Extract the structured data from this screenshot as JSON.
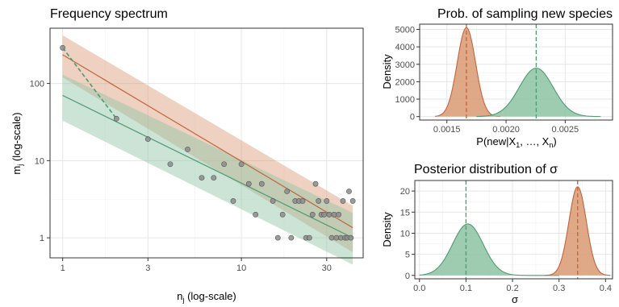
{
  "colors": {
    "orange": "#c0643c",
    "orange_fill": "#d99a73",
    "green": "#4f9a73",
    "green_fill": "#8cc3a3",
    "points": "#8c8c8c"
  },
  "chart_data": [
    {
      "type": "scatter",
      "title": "Frequency spectrum",
      "xlabel": "n",
      "xlabel_sub": "j",
      "xlabel_suffix": " (log-scale)",
      "ylabel": "m",
      "ylabel_sub": "j",
      "ylabel_suffix": " (log-scale)",
      "xscale": "log",
      "yscale": "log",
      "xlim": [
        0.85,
        48
      ],
      "ylim": [
        0.55,
        520
      ],
      "xticks": [
        1,
        3,
        10,
        30
      ],
      "xtick_labels": [
        "1",
        "3",
        "10",
        "30"
      ],
      "yticks": [
        1,
        10,
        100
      ],
      "ytick_labels": [
        "1",
        "10",
        "100"
      ],
      "grid": true,
      "points": [
        [
          1,
          290
        ],
        [
          2,
          35
        ],
        [
          3,
          19
        ],
        [
          4,
          9
        ],
        [
          5,
          14
        ],
        [
          6,
          6
        ],
        [
          7,
          6
        ],
        [
          8,
          9
        ],
        [
          9,
          3
        ],
        [
          10,
          9
        ],
        [
          11,
          5
        ],
        [
          12,
          2
        ],
        [
          13,
          5
        ],
        [
          15,
          3
        ],
        [
          16,
          1
        ],
        [
          17,
          2
        ],
        [
          18,
          4
        ],
        [
          19,
          1
        ],
        [
          20,
          3
        ],
        [
          21,
          3
        ],
        [
          22,
          3
        ],
        [
          23,
          1
        ],
        [
          24,
          1
        ],
        [
          25,
          2
        ],
        [
          26,
          5
        ],
        [
          27,
          3
        ],
        [
          28,
          2
        ],
        [
          29,
          2
        ],
        [
          30,
          3
        ],
        [
          31,
          2
        ],
        [
          32,
          1
        ],
        [
          33,
          2
        ],
        [
          34,
          1
        ],
        [
          35,
          2
        ],
        [
          36,
          1
        ],
        [
          37,
          3
        ],
        [
          38,
          1
        ],
        [
          39,
          1
        ],
        [
          40,
          4
        ],
        [
          41,
          1
        ],
        [
          42,
          3
        ]
      ],
      "series": [
        {
          "color": "orange",
          "x": [
            1,
            42
          ],
          "y": [
            235,
            1.35
          ],
          "lower": [
            120,
            0.65
          ],
          "upper": [
            420,
            2.6
          ]
        },
        {
          "color": "green",
          "x": [
            1,
            42
          ],
          "y": [
            70,
            1.0
          ],
          "lower": [
            33,
            0.45
          ],
          "upper": [
            130,
            2.1
          ]
        }
      ],
      "dashed_segment": {
        "color": "green",
        "x": [
          1,
          2
        ],
        "y": [
          290,
          35
        ]
      }
    },
    {
      "type": "area",
      "title": "Prob. of sampling new species",
      "xlabel": "P(new|X",
      "xlabel_sub": "1",
      "xlabel_mid": ", …, X",
      "xlabel_sub2": "n",
      "xlabel_end": ")",
      "ylabel": "Density",
      "xlim": [
        0.00127,
        0.0029
      ],
      "ylim": [
        -200,
        5300
      ],
      "xticks": [
        0.0015,
        0.002,
        0.0025
      ],
      "xtick_labels": [
        "0.0015",
        "0.0020",
        "0.0025"
      ],
      "yticks": [
        0,
        1000,
        2000,
        3000,
        4000,
        5000
      ],
      "ytick_labels": [
        "0",
        "1000",
        "2000",
        "3000",
        "4000",
        "5000"
      ],
      "grid": true,
      "densities": [
        {
          "color": "orange",
          "mean": 0.001665,
          "sd": 7.75e-05,
          "peak": 5100,
          "range": [
            0.0014,
            0.00195
          ]
        },
        {
          "color": "green",
          "mean": 0.002255,
          "sd": 0.000143,
          "peak": 2780,
          "range": [
            0.00175,
            0.0028
          ]
        }
      ],
      "vlines": [
        {
          "color": "orange",
          "x": 0.001665
        },
        {
          "color": "green",
          "x": 0.002255
        }
      ]
    },
    {
      "type": "area",
      "title": "Posterior distribution of σ",
      "xlabel": "σ",
      "ylabel": "Density",
      "xlim": [
        -0.01,
        0.415
      ],
      "ylim": [
        -0.8,
        22.5
      ],
      "xticks": [
        0.0,
        0.1,
        0.2,
        0.3,
        0.4
      ],
      "xtick_labels": [
        "0.0",
        "0.1",
        "0.2",
        "0.3",
        "0.4"
      ],
      "yticks": [
        0,
        5,
        10,
        15,
        20
      ],
      "ytick_labels": [
        "0",
        "5",
        "10",
        "15",
        "20"
      ],
      "grid": true,
      "densities": [
        {
          "color": "green",
          "mean": 0.104,
          "sd": 0.033,
          "peak": 12.2,
          "range": [
            0.0,
            0.3
          ]
        },
        {
          "color": "orange",
          "mean": 0.34,
          "sd": 0.0188,
          "peak": 21.0,
          "range": [
            0.27,
            0.41
          ]
        }
      ],
      "vlines": [
        {
          "color": "green",
          "x": 0.1
        },
        {
          "color": "orange",
          "x": 0.34
        }
      ]
    }
  ]
}
